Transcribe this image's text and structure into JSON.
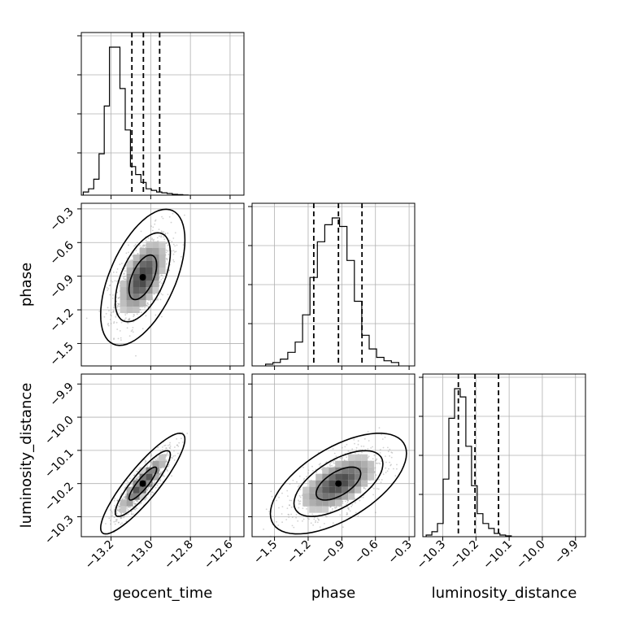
{
  "chart_data": {
    "type": "corner",
    "parameters": [
      {
        "key": "geocent_time",
        "label": "geocent_time",
        "range": [
          -13.35,
          -12.53
        ],
        "ticks": [
          -13.2,
          -13.0,
          -12.8,
          -12.6
        ],
        "tick_labels": [
          "−13.2",
          "−13.0",
          "−12.8",
          "−12.6"
        ],
        "quantiles": [
          -13.095,
          -13.037,
          -12.955
        ],
        "histogram": {
          "bin_start": -13.34,
          "bin_width": 0.0264,
          "counts": [
            2,
            4,
            10,
            26,
            56,
            93,
            93,
            67,
            41,
            18,
            13,
            8,
            4,
            3,
            2,
            1.5,
            1,
            0.5,
            0.3,
            0.1
          ]
        }
      },
      {
        "key": "phase",
        "label": "phase",
        "range": [
          -1.7,
          -0.25
        ],
        "ticks": [
          -1.5,
          -1.2,
          -0.9,
          -0.6,
          -0.3
        ],
        "tick_labels": [
          "−1.5",
          "−1.2",
          "−0.9",
          "−0.6",
          "−0.3"
        ],
        "quantiles": [
          -1.15,
          -0.93,
          -0.72
        ],
        "histogram": {
          "bin_start": -1.58,
          "bin_width": 0.066,
          "counts": [
            1,
            2,
            4,
            8,
            14,
            30,
            52,
            73,
            83,
            87,
            82,
            62,
            38,
            18,
            10,
            5,
            3,
            2
          ]
        }
      },
      {
        "key": "luminosity_distance",
        "label": "luminosity_distance",
        "range": [
          -10.36,
          -9.87
        ],
        "ticks": [
          -10.3,
          -10.2,
          -10.1,
          -10.0,
          -9.9
        ],
        "tick_labels": [
          "−10.3",
          "−10.2",
          "−10.1",
          "−10.0",
          "−9.9"
        ],
        "quantiles": [
          -10.253,
          -10.203,
          -10.132
        ],
        "histogram": {
          "bin_start": -10.35,
          "bin_width": 0.0171,
          "counts": [
            1,
            3,
            8,
            35,
            72,
            90,
            85,
            55,
            31,
            14,
            8,
            5,
            2,
            1,
            0.5
          ]
        }
      }
    ],
    "pairs": [
      {
        "x": "geocent_time",
        "y": "phase",
        "mean": [
          -13.04,
          -0.91
        ],
        "sd": [
          0.07,
          0.2
        ],
        "rho": 0.55,
        "levels": [
          0.39,
          0.86,
          0.99
        ]
      },
      {
        "x": "geocent_time",
        "y": "luminosity_distance",
        "mean": [
          -13.04,
          -10.2
        ],
        "sd": [
          0.07,
          0.05
        ],
        "rho": 0.88,
        "levels": [
          0.39,
          0.86,
          0.99
        ]
      },
      {
        "x": "phase",
        "y": "luminosity_distance",
        "mean": [
          -0.93,
          -10.2
        ],
        "sd": [
          0.2,
          0.05
        ],
        "rho": 0.6,
        "levels": [
          0.39,
          0.86,
          0.99
        ]
      }
    ],
    "grid": true,
    "colors": {
      "hist": "#000000",
      "quantile": "#000000",
      "scatter": "#9a9a9a",
      "contour": "#000000",
      "grid": "#b0b0b0"
    }
  }
}
